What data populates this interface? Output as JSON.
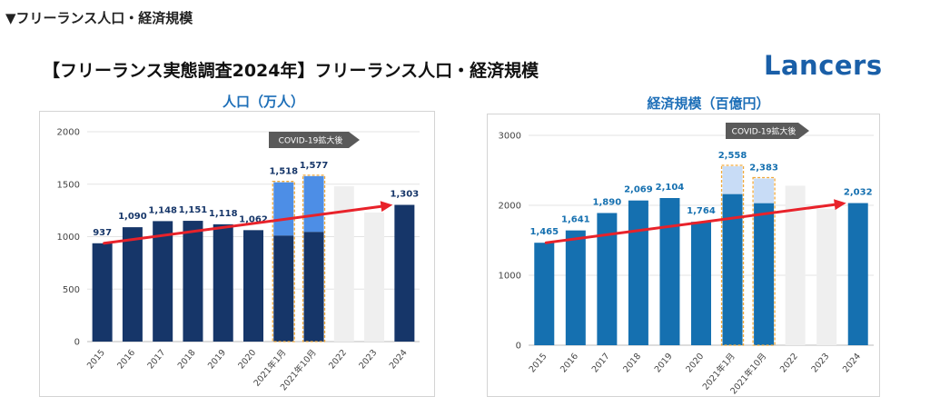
{
  "section_heading": "▼フリーランス人口・経済規模",
  "page_title": "【フリーランス実態調査2024年】フリーランス人口・経済規模",
  "logo_text": "Lancers",
  "brand_color": "#1a5fa8",
  "chart_data": [
    {
      "type": "bar",
      "title": "人口（万人）",
      "categories": [
        "2015",
        "2016",
        "2017",
        "2018",
        "2019",
        "2020",
        "2021年1月",
        "2021年10月",
        "2022",
        "2023",
        "2024"
      ],
      "values": [
        937,
        1090,
        1148,
        1151,
        1118,
        1062,
        1518,
        1577,
        null,
        null,
        1303
      ],
      "base_values": [
        937,
        1090,
        1148,
        1151,
        1118,
        1062,
        1010,
        1045,
        null,
        null,
        1303
      ],
      "data_labels": [
        "937",
        "1,090",
        "1,148",
        "1,151",
        "1,118",
        "1,062",
        "1,518",
        "1,577",
        "",
        "",
        "1,303"
      ],
      "ghost_values": [
        null,
        null,
        null,
        null,
        null,
        null,
        null,
        null,
        1480,
        1230,
        null
      ],
      "highlight_categories": [
        "2021年1月",
        "2021年10月"
      ],
      "yticks": [
        "0",
        "500",
        "1000",
        "1500",
        "2000"
      ],
      "ylim": [
        0,
        2000
      ],
      "annotation": "COVID-19拡大後",
      "trend": {
        "from_category": "2015",
        "from_value": 937,
        "to_category": "2024",
        "to_value": 1303
      },
      "colors": {
        "main": "#163669",
        "highlight": "#4d8ee6",
        "ghost": "#efefef",
        "label": "#163669",
        "trend": "#e8222a"
      }
    },
    {
      "type": "bar",
      "title": "経済規模（百億円）",
      "categories": [
        "2015",
        "2016",
        "2017",
        "2018",
        "2019",
        "2020",
        "2021年1月",
        "2021年10月",
        "2022",
        "2023",
        "2024"
      ],
      "values": [
        1465,
        1641,
        1890,
        2069,
        2104,
        1764,
        2558,
        2383,
        null,
        null,
        2032
      ],
      "base_values": [
        1465,
        1641,
        1890,
        2069,
        2104,
        1764,
        2160,
        2030,
        null,
        null,
        2032
      ],
      "data_labels": [
        "1,465",
        "1,641",
        "1,890",
        "2,069",
        "2,104",
        "1,764",
        "2,558",
        "2,383",
        "",
        "",
        "2,032"
      ],
      "ghost_values": [
        null,
        null,
        null,
        null,
        null,
        null,
        null,
        null,
        2280,
        1950,
        null
      ],
      "highlight_categories": [
        "2021年1月",
        "2021年10月"
      ],
      "yticks": [
        "0",
        "1000",
        "2000",
        "3000"
      ],
      "ylim": [
        0,
        3000
      ],
      "annotation": "COVID-19拡大後",
      "trend": {
        "from_category": "2015",
        "from_value": 1465,
        "to_category": "2024",
        "to_value": 2032
      },
      "colors": {
        "main": "#1570b0",
        "highlight": "#c8dcf6",
        "ghost": "#efefef",
        "label": "#1570b0",
        "trend": "#e8222a"
      }
    }
  ]
}
